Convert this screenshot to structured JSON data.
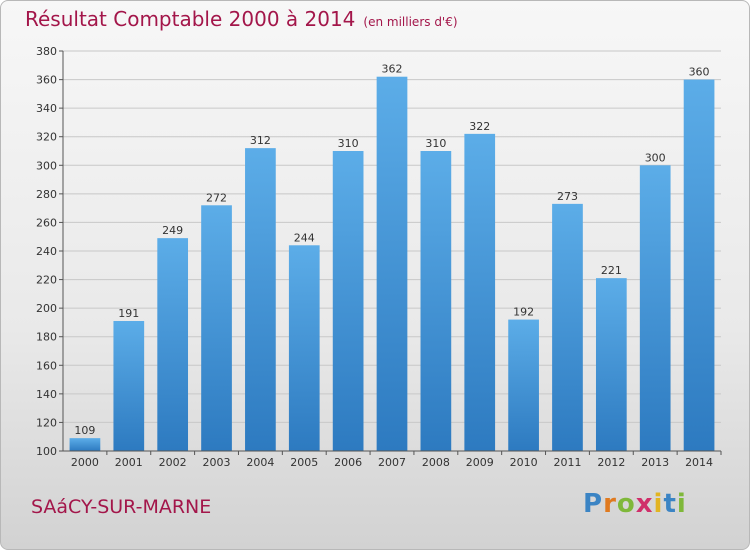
{
  "header": {
    "title": "Résultat Comptable 2000 à 2014",
    "subtitle": "(en milliers d'€)"
  },
  "footer": {
    "place": "SAáCY-SUR-MARNE",
    "logo_letters": [
      "P",
      "r",
      "o",
      "x",
      "i",
      "t",
      "i"
    ]
  },
  "colors": {
    "title": "#a3164a",
    "bar_light": "#5cade8",
    "bar_dark": "#2d7ac0",
    "grid": "#c8c8c8",
    "axis": "#555555",
    "logo": [
      "#3b84c4",
      "#e07a1f",
      "#7fb83a",
      "#d02f6a",
      "#e2b422",
      "#3b84c4",
      "#7fb83a"
    ]
  },
  "chart_data": {
    "type": "bar",
    "title": "Résultat Comptable 2000 à 2014",
    "subtitle": "(en milliers d'€)",
    "categories": [
      "2000",
      "2001",
      "2002",
      "2003",
      "2004",
      "2005",
      "2006",
      "2007",
      "2008",
      "2009",
      "2010",
      "2011",
      "2012",
      "2013",
      "2014"
    ],
    "values": [
      109,
      191,
      249,
      272,
      312,
      244,
      310,
      362,
      310,
      322,
      192,
      273,
      221,
      300,
      360
    ],
    "ylim": [
      100,
      380
    ],
    "yticks": [
      100,
      120,
      140,
      160,
      180,
      200,
      220,
      240,
      260,
      280,
      300,
      320,
      340,
      360,
      380
    ],
    "xlabel": "",
    "ylabel": "",
    "grid": true,
    "data_labels": true
  }
}
